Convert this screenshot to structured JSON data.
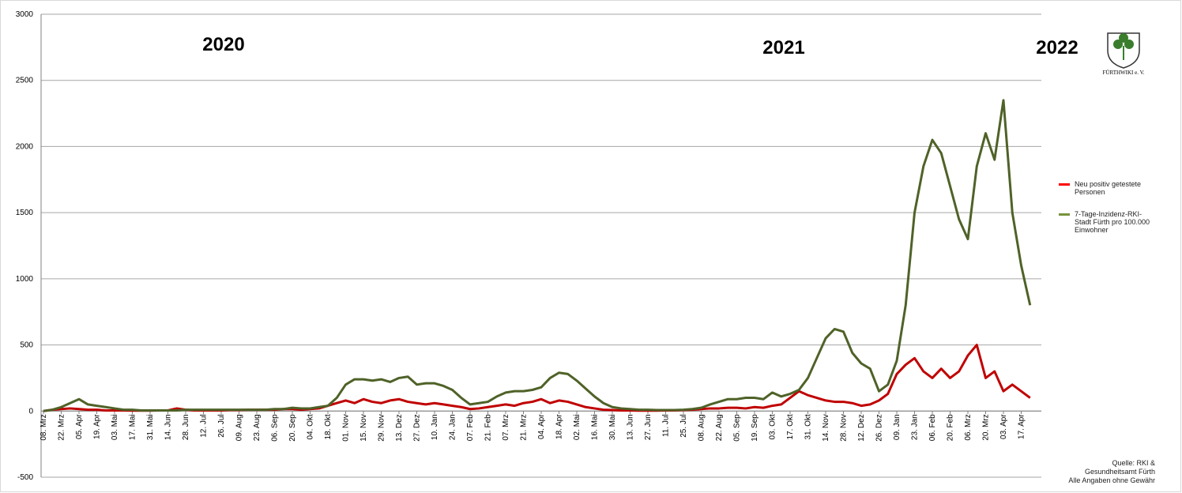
{
  "chart_data": {
    "type": "line",
    "annotations": [
      "2020",
      "2021",
      "2022"
    ],
    "logo_text": "FÜRTHWIKI e. V.",
    "source": [
      "Quelle: RKI &",
      "Gesundheitsamt Fürth",
      "Alle Angaben ohne Gewähr"
    ],
    "categories": [
      "08. Mrz",
      null,
      "22. Mrz",
      null,
      "05. Apr",
      null,
      "19. Apr",
      null,
      "03. Mai",
      null,
      "17. Mai",
      null,
      "31. Mai",
      null,
      "14. Jun",
      null,
      "28. Jun",
      null,
      "12. Jul",
      null,
      "26. Jul",
      null,
      "09. Aug",
      null,
      "23. Aug",
      null,
      "06. Sep",
      null,
      "20. Sep",
      null,
      "04. Okt",
      null,
      "18. Okt",
      null,
      "01. Nov",
      null,
      "15. Nov",
      null,
      "29. Nov",
      null,
      "13. Dez",
      null,
      "27. Dez",
      null,
      "10. Jan",
      null,
      "24. Jan",
      null,
      "07. Feb",
      null,
      "21. Feb",
      null,
      "07. Mrz",
      null,
      "21. Mrz",
      null,
      "04. Apr",
      null,
      "18. Apr",
      null,
      "02. Mai",
      null,
      "16. Mai",
      null,
      "30. Mai",
      null,
      "13. Jun",
      null,
      "27. Jun",
      null,
      "11. Jul",
      null,
      "25. Jul",
      null,
      "08. Aug",
      null,
      "22. Aug",
      null,
      "05. Sep",
      null,
      "19. Sep",
      null,
      "03. Okt",
      null,
      "17. Okt",
      null,
      "31. Okt",
      null,
      "14. Nov",
      null,
      "28. Nov",
      null,
      "12. Dez",
      null,
      "26. Dez",
      null,
      "09. Jan",
      null,
      "23. Jan",
      null,
      "06. Feb",
      null,
      "20. Feb",
      null,
      "06. Mrz",
      null,
      "20. Mrz",
      null,
      "03. Apr",
      null,
      "17. Apr",
      null
    ],
    "series": [
      {
        "name": "Neu positiv getestete Personen",
        "color": "#c00000",
        "legend_color": "#ff0000",
        "values": [
          0,
          10,
          15,
          20,
          15,
          10,
          10,
          5,
          5,
          5,
          3,
          3,
          3,
          5,
          5,
          20,
          10,
          5,
          5,
          5,
          5,
          8,
          8,
          10,
          10,
          10,
          10,
          15,
          15,
          10,
          15,
          20,
          40,
          60,
          80,
          60,
          90,
          70,
          60,
          80,
          90,
          70,
          60,
          50,
          60,
          50,
          40,
          30,
          15,
          20,
          30,
          40,
          50,
          40,
          60,
          70,
          90,
          60,
          80,
          70,
          50,
          30,
          20,
          10,
          8,
          5,
          5,
          3,
          3,
          3,
          5,
          5,
          8,
          10,
          15,
          20,
          20,
          25,
          25,
          20,
          30,
          25,
          40,
          50,
          100,
          150,
          120,
          100,
          80,
          70,
          70,
          60,
          40,
          50,
          80,
          130,
          280,
          350,
          400,
          300,
          250,
          320,
          250,
          300,
          420,
          500,
          250,
          300,
          150,
          200,
          150,
          100
        ]
      },
      {
        "name": "7-Tage-Inzidenz-RKI-Stadt Fürth pro 100.000 Einwohner",
        "color": "#4f6228",
        "legend_color": "#77933c",
        "values": [
          0,
          10,
          30,
          60,
          90,
          50,
          40,
          30,
          20,
          10,
          10,
          5,
          5,
          5,
          5,
          5,
          10,
          10,
          10,
          10,
          10,
          10,
          10,
          10,
          10,
          10,
          15,
          15,
          25,
          20,
          20,
          30,
          40,
          100,
          200,
          240,
          240,
          230,
          240,
          220,
          250,
          260,
          200,
          210,
          210,
          190,
          160,
          100,
          50,
          60,
          70,
          110,
          140,
          150,
          150,
          160,
          180,
          250,
          290,
          280,
          230,
          170,
          110,
          60,
          30,
          20,
          15,
          10,
          10,
          8,
          8,
          8,
          10,
          15,
          25,
          50,
          70,
          90,
          90,
          100,
          100,
          90,
          140,
          110,
          130,
          160,
          250,
          400,
          550,
          620,
          600,
          440,
          360,
          320,
          150,
          200,
          380,
          800,
          1500,
          1850,
          2050,
          1950,
          1700,
          1450,
          1300,
          1850,
          2100,
          1900,
          2350,
          1500,
          1100,
          800
        ]
      }
    ],
    "ylim": [
      -500,
      3000
    ],
    "yticks": [
      -500,
      0,
      500,
      1000,
      1500,
      2000,
      2500,
      3000
    ],
    "grid": true
  }
}
